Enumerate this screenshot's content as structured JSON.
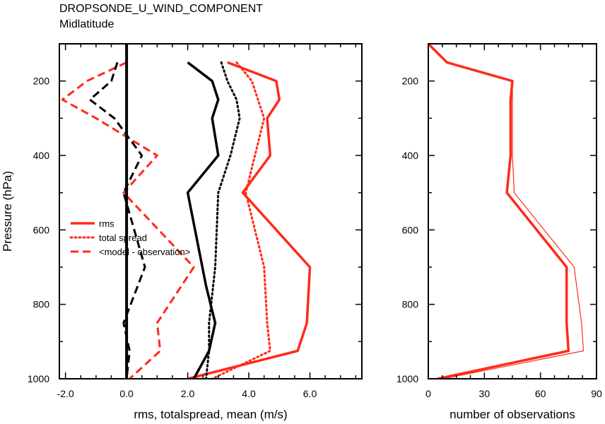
{
  "title": "DROPSONDE_U_WIND_COMPONENT",
  "subtitle": "Midlatitude",
  "colors": {
    "red": "#ff2a1a",
    "black": "#000000"
  },
  "chart_data": [
    {
      "type": "line",
      "xlabel": "rms, totalspread, mean (m/s)",
      "ylabel": "Pressure (hPa)",
      "xlim": [
        -2.2,
        7.7
      ],
      "ylim": [
        1000,
        100
      ],
      "y_reversed": true,
      "xticks": [
        -2.0,
        0.0,
        2.0,
        4.0,
        6.0
      ],
      "xtick_labels": [
        "-2.0",
        "0.0",
        "2.0",
        "4.0",
        "6.0"
      ],
      "yticks": [
        200,
        400,
        600,
        800,
        1000
      ],
      "ytick_labels": [
        "200",
        "400",
        "600",
        "800",
        "1000"
      ],
      "legend": {
        "position": "left-middle",
        "entries": [
          "rms",
          "total spread",
          "<model - observation>"
        ]
      },
      "series": [
        {
          "name": "rms",
          "color": "red",
          "dash": "solid",
          "width": 3.5,
          "points": [
            [
              3.3,
              150
            ],
            [
              4.9,
              200
            ],
            [
              5.0,
              250
            ],
            [
              4.6,
              300
            ],
            [
              4.7,
              400
            ],
            [
              3.8,
              500
            ],
            [
              6.0,
              700
            ],
            [
              5.9,
              850
            ],
            [
              5.6,
              925
            ],
            [
              2.0,
              1000
            ]
          ]
        },
        {
          "name": "total spread",
          "color": "red",
          "dash": "dot",
          "width": 3,
          "points": [
            [
              3.6,
              150
            ],
            [
              4.1,
              200
            ],
            [
              4.3,
              250
            ],
            [
              4.5,
              300
            ],
            [
              4.2,
              400
            ],
            [
              3.9,
              500
            ],
            [
              4.5,
              700
            ],
            [
              4.6,
              850
            ],
            [
              4.7,
              925
            ],
            [
              2.8,
              1000
            ]
          ]
        },
        {
          "name": "<model - observation>",
          "color": "red",
          "dash": "dash",
          "width": 3,
          "points": [
            [
              0.0,
              150
            ],
            [
              -1.3,
              200
            ],
            [
              -2.1,
              250
            ],
            [
              -1.0,
              300
            ],
            [
              1.0,
              400
            ],
            [
              -0.1,
              500
            ],
            [
              2.2,
              700
            ],
            [
              1.0,
              850
            ],
            [
              1.1,
              925
            ],
            [
              0.1,
              1000
            ]
          ]
        },
        {
          "color": "black",
          "dash": "solid",
          "width": 3.5,
          "points": [
            [
              2.0,
              150
            ],
            [
              2.8,
              200
            ],
            [
              3.0,
              250
            ],
            [
              2.8,
              300
            ],
            [
              3.0,
              400
            ],
            [
              2.0,
              500
            ],
            [
              2.6,
              750
            ],
            [
              2.9,
              850
            ],
            [
              2.7,
              925
            ],
            [
              2.2,
              1000
            ]
          ]
        },
        {
          "color": "black",
          "dash": "dot",
          "width": 3,
          "points": [
            [
              3.1,
              150
            ],
            [
              3.3,
              200
            ],
            [
              3.6,
              250
            ],
            [
              3.7,
              300
            ],
            [
              3.4,
              400
            ],
            [
              3.0,
              500
            ],
            [
              2.9,
              700
            ],
            [
              2.7,
              850
            ],
            [
              2.7,
              925
            ],
            [
              2.6,
              1000
            ]
          ]
        },
        {
          "color": "black",
          "dash": "dash",
          "width": 3,
          "points": [
            [
              -0.3,
              150
            ],
            [
              -0.5,
              200
            ],
            [
              -1.2,
              250
            ],
            [
              -0.4,
              300
            ],
            [
              0.5,
              400
            ],
            [
              -0.1,
              500
            ],
            [
              0.6,
              700
            ],
            [
              -0.1,
              850
            ],
            [
              0.1,
              925
            ],
            [
              0.0,
              1000
            ]
          ]
        },
        {
          "color": "black",
          "dash": "solid",
          "width": 4,
          "points": [
            [
              0.0,
              100
            ],
            [
              0.0,
              1000
            ]
          ]
        }
      ]
    },
    {
      "type": "line",
      "xlabel": "number of observations",
      "xlim": [
        0,
        90
      ],
      "ylim": [
        1000,
        100
      ],
      "y_reversed": true,
      "xticks": [
        0,
        30,
        60,
        90
      ],
      "xtick_labels": [
        "0",
        "30",
        "60",
        "90"
      ],
      "yticks": [
        200,
        400,
        600,
        800,
        1000
      ],
      "ytick_labels": [
        "200",
        "400",
        "600",
        "800",
        "1000"
      ],
      "series": [
        {
          "color": "red",
          "dash": "solid",
          "width": 3.5,
          "points": [
            [
              0,
              100
            ],
            [
              10,
              150
            ],
            [
              45,
              200
            ],
            [
              44,
              250
            ],
            [
              44,
              300
            ],
            [
              44,
              400
            ],
            [
              42,
              500
            ],
            [
              74,
              700
            ],
            [
              74,
              850
            ],
            [
              75,
              925
            ],
            [
              5,
              1000
            ]
          ]
        },
        {
          "color": "red",
          "dash": "solid",
          "width": 1.2,
          "points": [
            [
              0,
              100
            ],
            [
              10,
              150
            ],
            [
              45,
              200
            ],
            [
              45,
              250
            ],
            [
              45,
              300
            ],
            [
              45,
              400
            ],
            [
              46,
              500
            ],
            [
              78,
              700
            ],
            [
              82,
              850
            ],
            [
              83,
              925
            ],
            [
              8,
              1000
            ]
          ]
        }
      ]
    }
  ]
}
